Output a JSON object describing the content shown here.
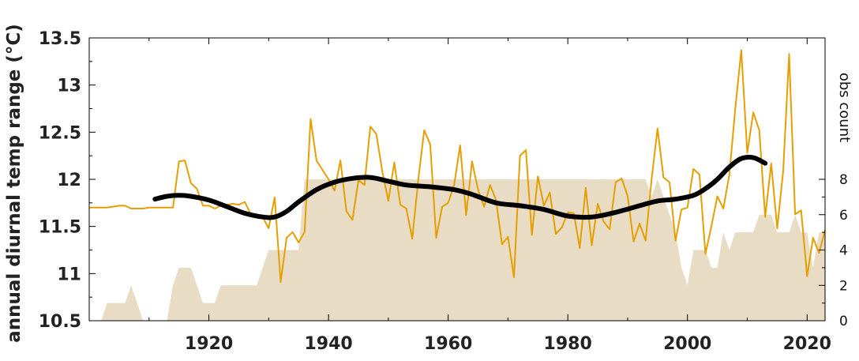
{
  "chart_data": {
    "type": "line",
    "ylabel": "annual diurnal temp range (°C)",
    "ylabel_right": "obs count",
    "xlim": [
      1900,
      2023
    ],
    "ylim": [
      10.5,
      13.5
    ],
    "ylim_right": [
      0,
      16
    ],
    "x_ticks": [
      1920,
      1940,
      1960,
      1980,
      2000,
      2020
    ],
    "x_tick_labels": [
      "1920",
      "1940",
      "1960",
      "1980",
      "2000",
      "2020"
    ],
    "y_ticks": [
      10.5,
      11,
      11.5,
      12,
      12.5,
      13,
      13.5
    ],
    "y_tick_labels": [
      "10.5",
      "11",
      "11.5",
      "12",
      "12.5",
      "13",
      "13.5"
    ],
    "y_right_ticks": [
      0,
      2,
      4,
      6,
      8
    ],
    "y_right_tick_labels": [
      "0",
      "2",
      "4",
      "6",
      "8"
    ],
    "grid": false,
    "colors": {
      "annual": "#E69F00",
      "smooth": "#000000",
      "count": "#E8DCC4"
    },
    "series": [
      {
        "role": "annual",
        "x": [
          1900,
          1901,
          1902,
          1903,
          1904,
          1905,
          1906,
          1907,
          1908,
          1909,
          1910,
          1911,
          1912,
          1913,
          1914,
          1915,
          1916,
          1917,
          1918,
          1919,
          1920,
          1921,
          1922,
          1923,
          1924,
          1925,
          1926,
          1927,
          1928,
          1929,
          1930,
          1931,
          1932,
          1933,
          1934,
          1935,
          1936,
          1937,
          1938,
          1939,
          1940,
          1941,
          1942,
          1943,
          1944,
          1945,
          1946,
          1947,
          1948,
          1949,
          1950,
          1951,
          1952,
          1953,
          1954,
          1955,
          1956,
          1957,
          1958,
          1959,
          1960,
          1961,
          1962,
          1963,
          1964,
          1965,
          1966,
          1967,
          1968,
          1969,
          1970,
          1971,
          1972,
          1973,
          1974,
          1975,
          1976,
          1977,
          1978,
          1979,
          1980,
          1981,
          1982,
          1983,
          1984,
          1985,
          1986,
          1987,
          1988,
          1989,
          1990,
          1991,
          1992,
          1993,
          1994,
          1995,
          1996,
          1997,
          1998,
          1999,
          2000,
          2001,
          2002,
          2003,
          2004,
          2005,
          2006,
          2007,
          2008,
          2009,
          2010,
          2011,
          2012,
          2013,
          2014,
          2015,
          2016,
          2017,
          2018,
          2019,
          2020,
          2021,
          2022,
          2023
        ],
        "y": [
          11.7,
          11.7,
          11.7,
          11.7,
          11.71,
          11.72,
          11.72,
          11.69,
          11.69,
          11.69,
          11.7,
          11.7,
          11.7,
          11.7,
          11.7,
          12.19,
          12.2,
          11.96,
          11.9,
          11.72,
          11.72,
          11.69,
          11.72,
          11.73,
          11.74,
          11.73,
          11.76,
          11.63,
          11.6,
          11.6,
          11.48,
          11.81,
          10.91,
          11.38,
          11.44,
          11.33,
          11.44,
          12.64,
          12.2,
          12.1,
          12.0,
          11.88,
          12.2,
          11.66,
          11.57,
          11.99,
          11.94,
          12.56,
          12.48,
          12.08,
          11.77,
          12.18,
          11.73,
          11.69,
          11.37,
          11.99,
          12.52,
          12.37,
          11.38,
          11.71,
          11.75,
          11.94,
          12.36,
          11.62,
          12.19,
          11.89,
          11.71,
          11.94,
          11.78,
          11.31,
          11.39,
          10.96,
          12.25,
          12.31,
          11.41,
          12.03,
          11.72,
          11.86,
          11.42,
          11.49,
          11.65,
          11.64,
          11.27,
          11.91,
          11.3,
          11.74,
          11.55,
          11.47,
          11.97,
          12.01,
          11.82,
          11.34,
          11.53,
          11.35,
          12.0,
          12.54,
          12.02,
          11.97,
          11.35,
          11.68,
          11.7,
          12.11,
          12.05,
          11.21,
          11.5,
          11.82,
          11.69,
          12.05,
          12.75,
          13.37,
          12.28,
          12.71,
          12.52,
          11.6,
          12.17,
          11.48,
          12.09,
          13.33,
          11.63,
          11.67,
          10.97,
          11.38,
          11.22,
          11.46
        ]
      },
      {
        "role": "smooth",
        "x": [
          1911,
          1913,
          1915,
          1917,
          1920,
          1923,
          1926,
          1929,
          1931,
          1933,
          1935,
          1938,
          1941,
          1944,
          1947,
          1950,
          1953,
          1957,
          1961,
          1964,
          1968,
          1972,
          1976,
          1980,
          1984,
          1988,
          1992,
          1995,
          1998,
          2001,
          2003,
          2005,
          2007,
          2009,
          2011,
          2013
        ],
        "y": [
          11.79,
          11.82,
          11.83,
          11.82,
          11.78,
          11.71,
          11.64,
          11.6,
          11.6,
          11.66,
          11.76,
          11.89,
          11.97,
          12.01,
          12.02,
          11.98,
          11.94,
          11.92,
          11.89,
          11.84,
          11.75,
          11.72,
          11.68,
          11.61,
          11.6,
          11.65,
          11.72,
          11.77,
          11.79,
          11.83,
          11.9,
          12.0,
          12.13,
          12.22,
          12.23,
          12.17
        ]
      },
      {
        "role": "count",
        "x": [
          1902,
          1903,
          1904,
          1905,
          1906,
          1907,
          1908,
          1909,
          1910,
          1911,
          1912,
          1913,
          1914,
          1915,
          1916,
          1917,
          1918,
          1919,
          1920,
          1921,
          1922,
          1923,
          1924,
          1925,
          1926,
          1927,
          1928,
          1929,
          1930,
          1931,
          1932,
          1933,
          1934,
          1935,
          1936,
          1937,
          1938,
          1939,
          1940,
          1941,
          1942,
          1943,
          1944,
          1945,
          1946,
          1947,
          1948,
          1949,
          1950,
          1951,
          1952,
          1953,
          1954,
          1955,
          1956,
          1957,
          1958,
          1959,
          1960,
          1961,
          1962,
          1963,
          1964,
          1965,
          1966,
          1967,
          1968,
          1969,
          1970,
          1971,
          1972,
          1973,
          1974,
          1975,
          1976,
          1977,
          1978,
          1979,
          1980,
          1981,
          1982,
          1983,
          1984,
          1985,
          1986,
          1987,
          1988,
          1989,
          1990,
          1991,
          1992,
          1993,
          1994,
          1995,
          1996,
          1997,
          1998,
          1999,
          2000,
          2001,
          2002,
          2003,
          2004,
          2005,
          2006,
          2007,
          2008,
          2009,
          2010,
          2011,
          2012,
          2013,
          2014,
          2015,
          2016,
          2017,
          2018,
          2019,
          2020,
          2021,
          2022,
          2023
        ],
        "y": [
          0,
          1,
          1,
          1,
          1,
          2,
          1,
          0,
          0,
          0,
          0,
          0,
          2,
          3,
          3,
          3,
          2,
          1,
          1,
          1,
          2,
          2,
          2,
          2,
          2,
          2,
          2,
          3,
          4,
          4,
          4,
          4,
          4,
          4,
          8,
          8,
          8,
          8,
          8,
          8,
          8,
          8,
          8,
          8,
          8,
          8,
          8,
          8,
          8,
          8,
          8,
          8,
          8,
          8,
          8,
          8,
          8,
          8,
          8,
          8,
          8,
          8,
          8,
          8,
          8,
          8,
          8,
          8,
          8,
          8,
          8,
          8,
          8,
          8,
          8,
          8,
          8,
          8,
          8,
          8,
          8,
          8,
          8,
          8,
          8,
          8,
          8,
          8,
          8,
          8,
          8,
          8,
          7,
          8,
          7,
          6,
          5,
          3,
          2,
          4,
          4,
          4,
          3,
          3,
          5,
          4,
          5,
          5,
          5,
          5,
          6,
          6,
          6,
          5,
          5,
          5,
          6,
          5,
          5,
          3,
          5,
          5
        ]
      }
    ]
  }
}
